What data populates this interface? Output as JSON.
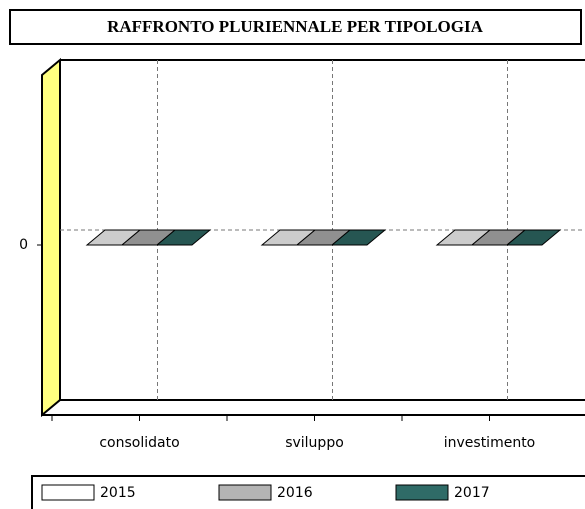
{
  "chart_data": {
    "type": "bar3d",
    "title": "RAFFRONTO PLURIENNALE PER TIPOLOGIA",
    "categories": [
      "consolidato",
      "sviluppo",
      "investimento"
    ],
    "series": [
      {
        "name": "2015",
        "color": "#ffffff",
        "values": [
          0,
          0,
          0
        ]
      },
      {
        "name": "2016",
        "color": "#b4b4b4",
        "values": [
          0,
          0,
          0
        ]
      },
      {
        "name": "2017",
        "color": "#2f6b67",
        "values": [
          0,
          0,
          0
        ]
      }
    ],
    "ylim": [
      -1,
      1
    ],
    "yticks": [
      0
    ],
    "grid": true,
    "legend": "bottom",
    "wall_color": "#ffff80"
  }
}
